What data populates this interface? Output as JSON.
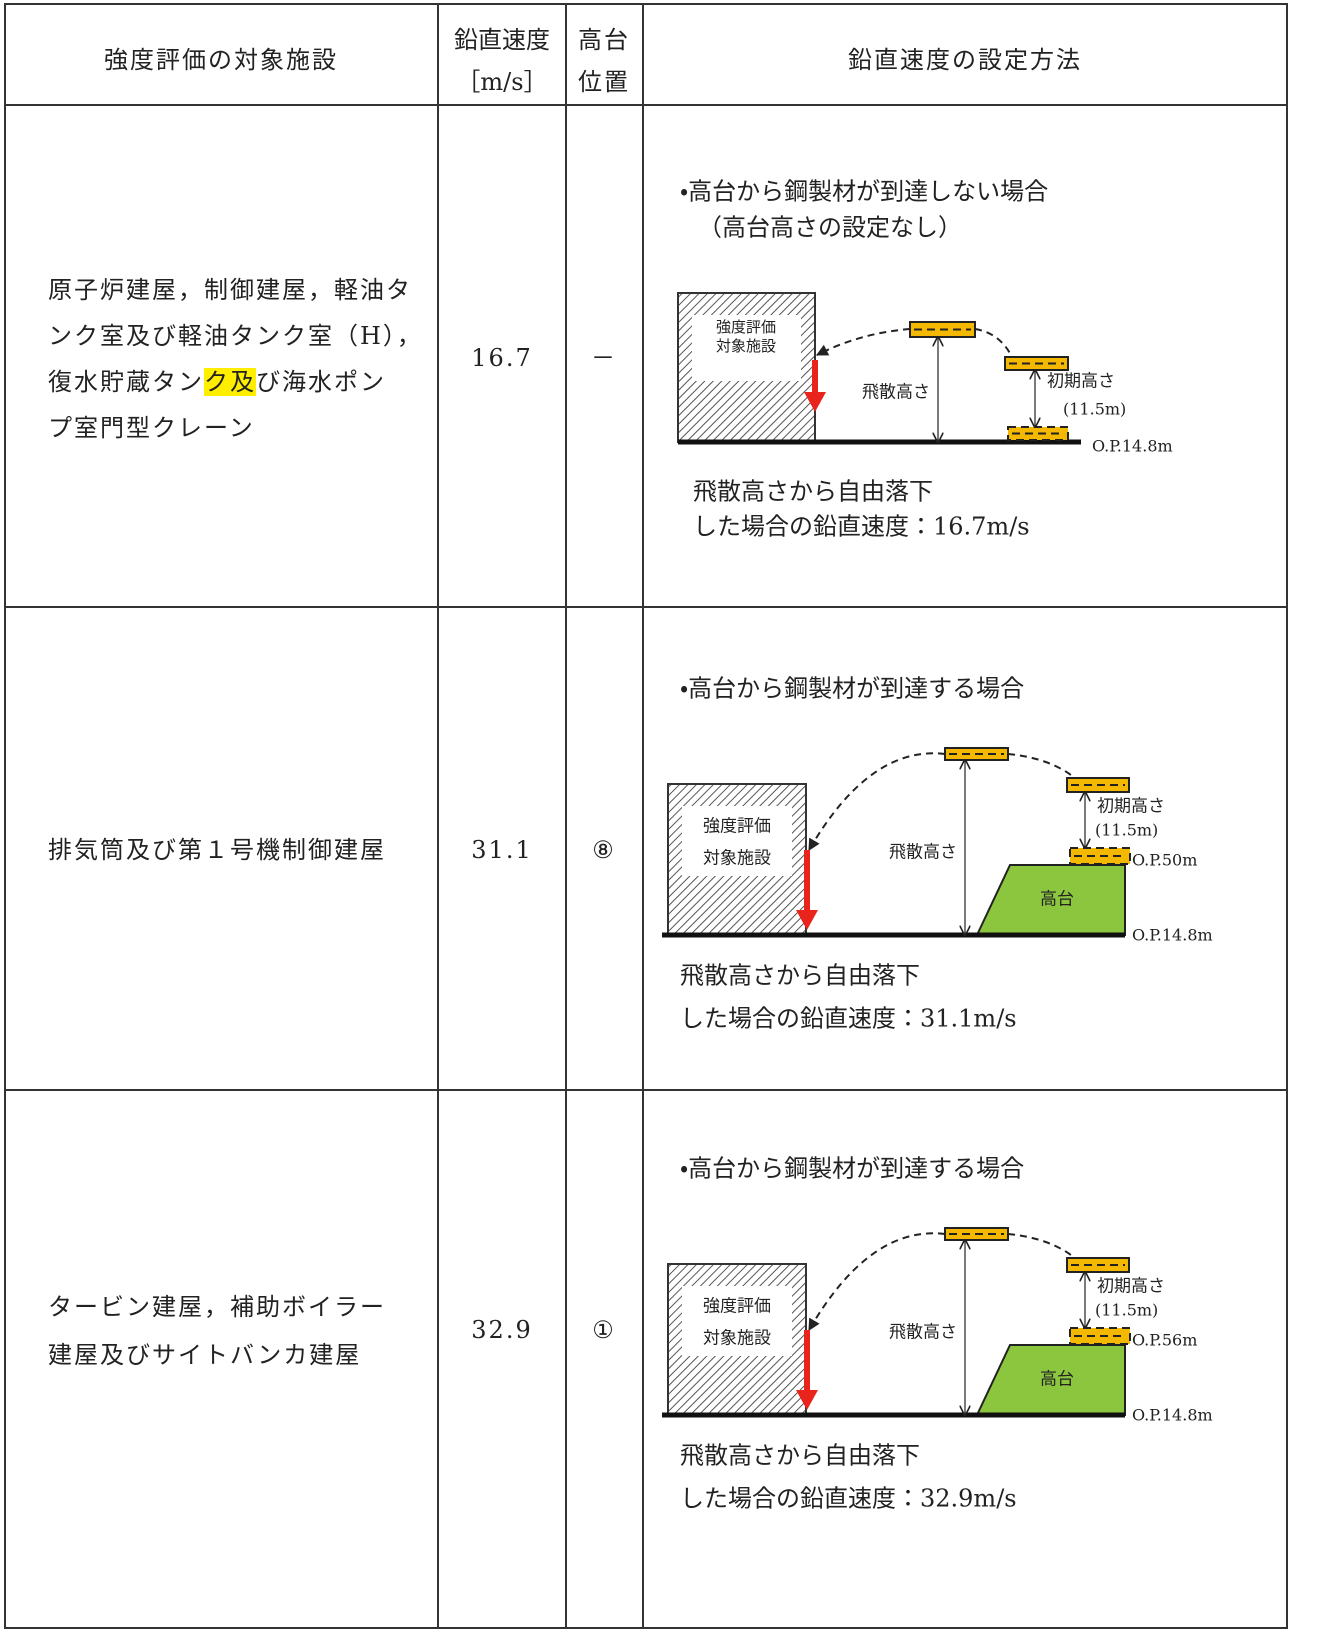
{
  "table": {
    "header": {
      "facility": "強度評価の対象施設",
      "velocity": [
        "鉛直速度",
        "［m/s］"
      ],
      "position": [
        "高台",
        "位置"
      ],
      "method": "鉛直速度の設定方法"
    },
    "rows": [
      {
        "facility": [
          "原子炉建屋，制御建屋，軽油タ",
          "ンク室及び軽油タンク室（H），",
          [
            "復水貯蔵タン",
            "ク及",
            "び海水ポン"
          ],
          "プ室門型クレーン"
        ],
        "velocity": "16.7",
        "position": "－",
        "method": {
          "heading": [
            "・高台から鋼製材が到達しない場合",
            "（高台高さの設定なし）"
          ],
          "facility_label": [
            "強度評価",
            "対象施設"
          ],
          "fly_label": "飛散高さ",
          "initial_label": "初期高さ",
          "initial_value": "(11.5m)",
          "base_level": "O.P.14.8m",
          "result": [
            "飛散高さから自由落下",
            "した場合の鉛直速度：16.7m/s"
          ]
        }
      },
      {
        "facility": [
          "排気筒及び第１号機制御建屋"
        ],
        "velocity": "31.1",
        "position": "⑧",
        "method": {
          "heading": [
            "・高台から鋼製材が到達する場合"
          ],
          "facility_label": [
            "強度評価",
            "対象施設"
          ],
          "fly_label": "飛散高さ",
          "initial_label": "初期高さ",
          "initial_value": "(11.5m)",
          "plateau": "高台",
          "plateau_level": "O.P.50m",
          "base_level": "O.P.14.8m",
          "result": [
            "飛散高さから自由落下",
            "した場合の鉛直速度：31.1m/s"
          ]
        }
      },
      {
        "facility": [
          "タービン建屋，補助ボイラー",
          "建屋及びサイトバンカ建屋"
        ],
        "velocity": "32.9",
        "position": "①",
        "method": {
          "heading": [
            "・高台から鋼製材が到達する場合"
          ],
          "facility_label": [
            "強度評価",
            "対象施設"
          ],
          "fly_label": "飛散高さ",
          "initial_label": "初期高さ",
          "initial_value": "(11.5m)",
          "plateau": "高台",
          "plateau_level": "O.P.56m",
          "base_level": "O.P.14.8m",
          "result": [
            "飛散高さから自由落下",
            "した場合の鉛直速度：32.9m/s"
          ]
        }
      }
    ]
  }
}
